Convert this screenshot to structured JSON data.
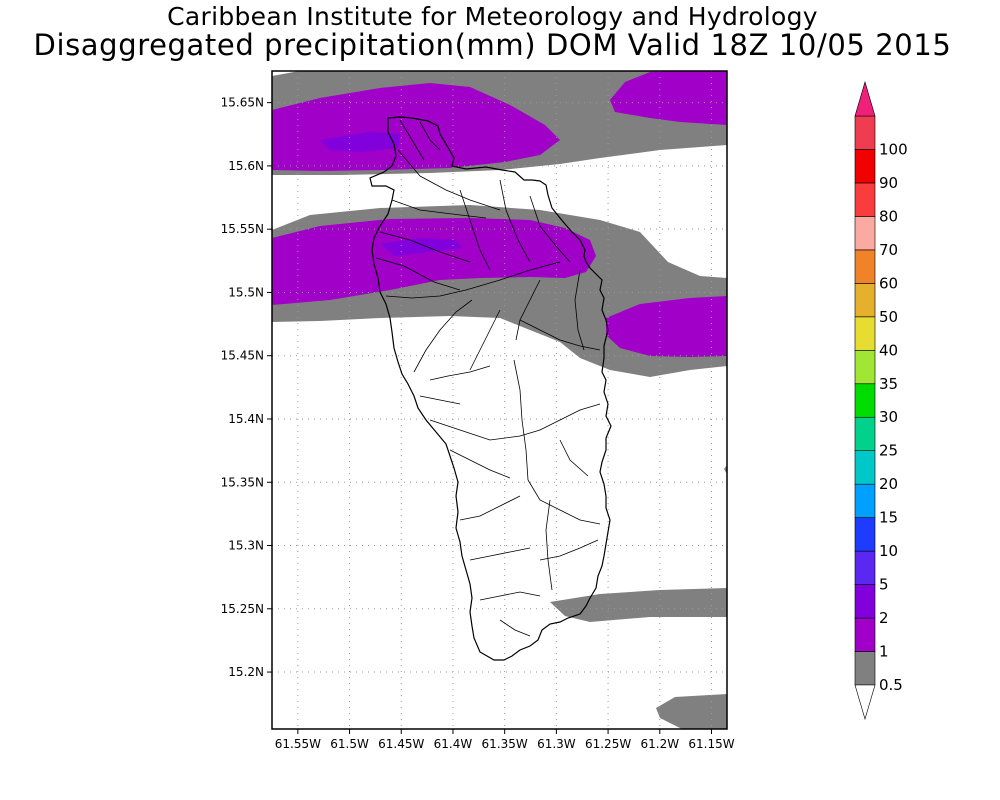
{
  "header": {
    "line1": "Caribbean Institute for Meteorology and Hydrology",
    "line2": "Disaggregated precipitation(mm) DOM Valid 18Z 10/05 2015"
  },
  "map": {
    "region": "Dominica",
    "lon_range": [
      -61.575,
      -61.135
    ],
    "lat_range": [
      15.155,
      15.675
    ],
    "lat_ticks": [
      {
        "value": 15.65,
        "label": "15.65N"
      },
      {
        "value": 15.6,
        "label": "15.6N"
      },
      {
        "value": 15.55,
        "label": "15.55N"
      },
      {
        "value": 15.5,
        "label": "15.5N"
      },
      {
        "value": 15.45,
        "label": "15.45N"
      },
      {
        "value": 15.4,
        "label": "15.4N"
      },
      {
        "value": 15.35,
        "label": "15.35N"
      },
      {
        "value": 15.3,
        "label": "15.3N"
      },
      {
        "value": 15.25,
        "label": "15.25N"
      },
      {
        "value": 15.2,
        "label": "15.2N"
      }
    ],
    "lon_ticks": [
      {
        "value": -61.55,
        "label": "61.55W"
      },
      {
        "value": -61.5,
        "label": "61.5W"
      },
      {
        "value": -61.45,
        "label": "61.45W"
      },
      {
        "value": -61.4,
        "label": "61.4W"
      },
      {
        "value": -61.35,
        "label": "61.35W"
      },
      {
        "value": -61.3,
        "label": "61.3W"
      },
      {
        "value": -61.25,
        "label": "61.25W"
      },
      {
        "value": -61.2,
        "label": "61.2W"
      },
      {
        "value": -61.15,
        "label": "61.15W"
      }
    ],
    "grid": "dotted",
    "colors": {
      "level_0_5": "#808080",
      "level_1": "#a000c8",
      "level_2": "#8200dc",
      "coast": "#000000",
      "land": "#ffffff"
    }
  },
  "colorbar": {
    "levels": [
      {
        "label": "0.5",
        "color": "#808080"
      },
      {
        "label": "1",
        "color": "#a000c8"
      },
      {
        "label": "2",
        "color": "#8200dc"
      },
      {
        "label": "5",
        "color": "#5a28f0"
      },
      {
        "label": "10",
        "color": "#1e3cff"
      },
      {
        "label": "15",
        "color": "#00a0ff"
      },
      {
        "label": "20",
        "color": "#00c8c8"
      },
      {
        "label": "25",
        "color": "#00d28c"
      },
      {
        "label": "30",
        "color": "#00dc00"
      },
      {
        "label": "35",
        "color": "#a0e632"
      },
      {
        "label": "40",
        "color": "#e6dc32"
      },
      {
        "label": "50",
        "color": "#e6af2d"
      },
      {
        "label": "60",
        "color": "#f08228"
      },
      {
        "label": "70",
        "color": "#faaaa0"
      },
      {
        "label": "80",
        "color": "#fa3c3c"
      },
      {
        "label": "90",
        "color": "#f00000"
      },
      {
        "label": "100",
        "color": "#f03c50"
      }
    ],
    "top_arrow_color": "#f0207a",
    "bottom_arrow_color": "#ffffff"
  }
}
